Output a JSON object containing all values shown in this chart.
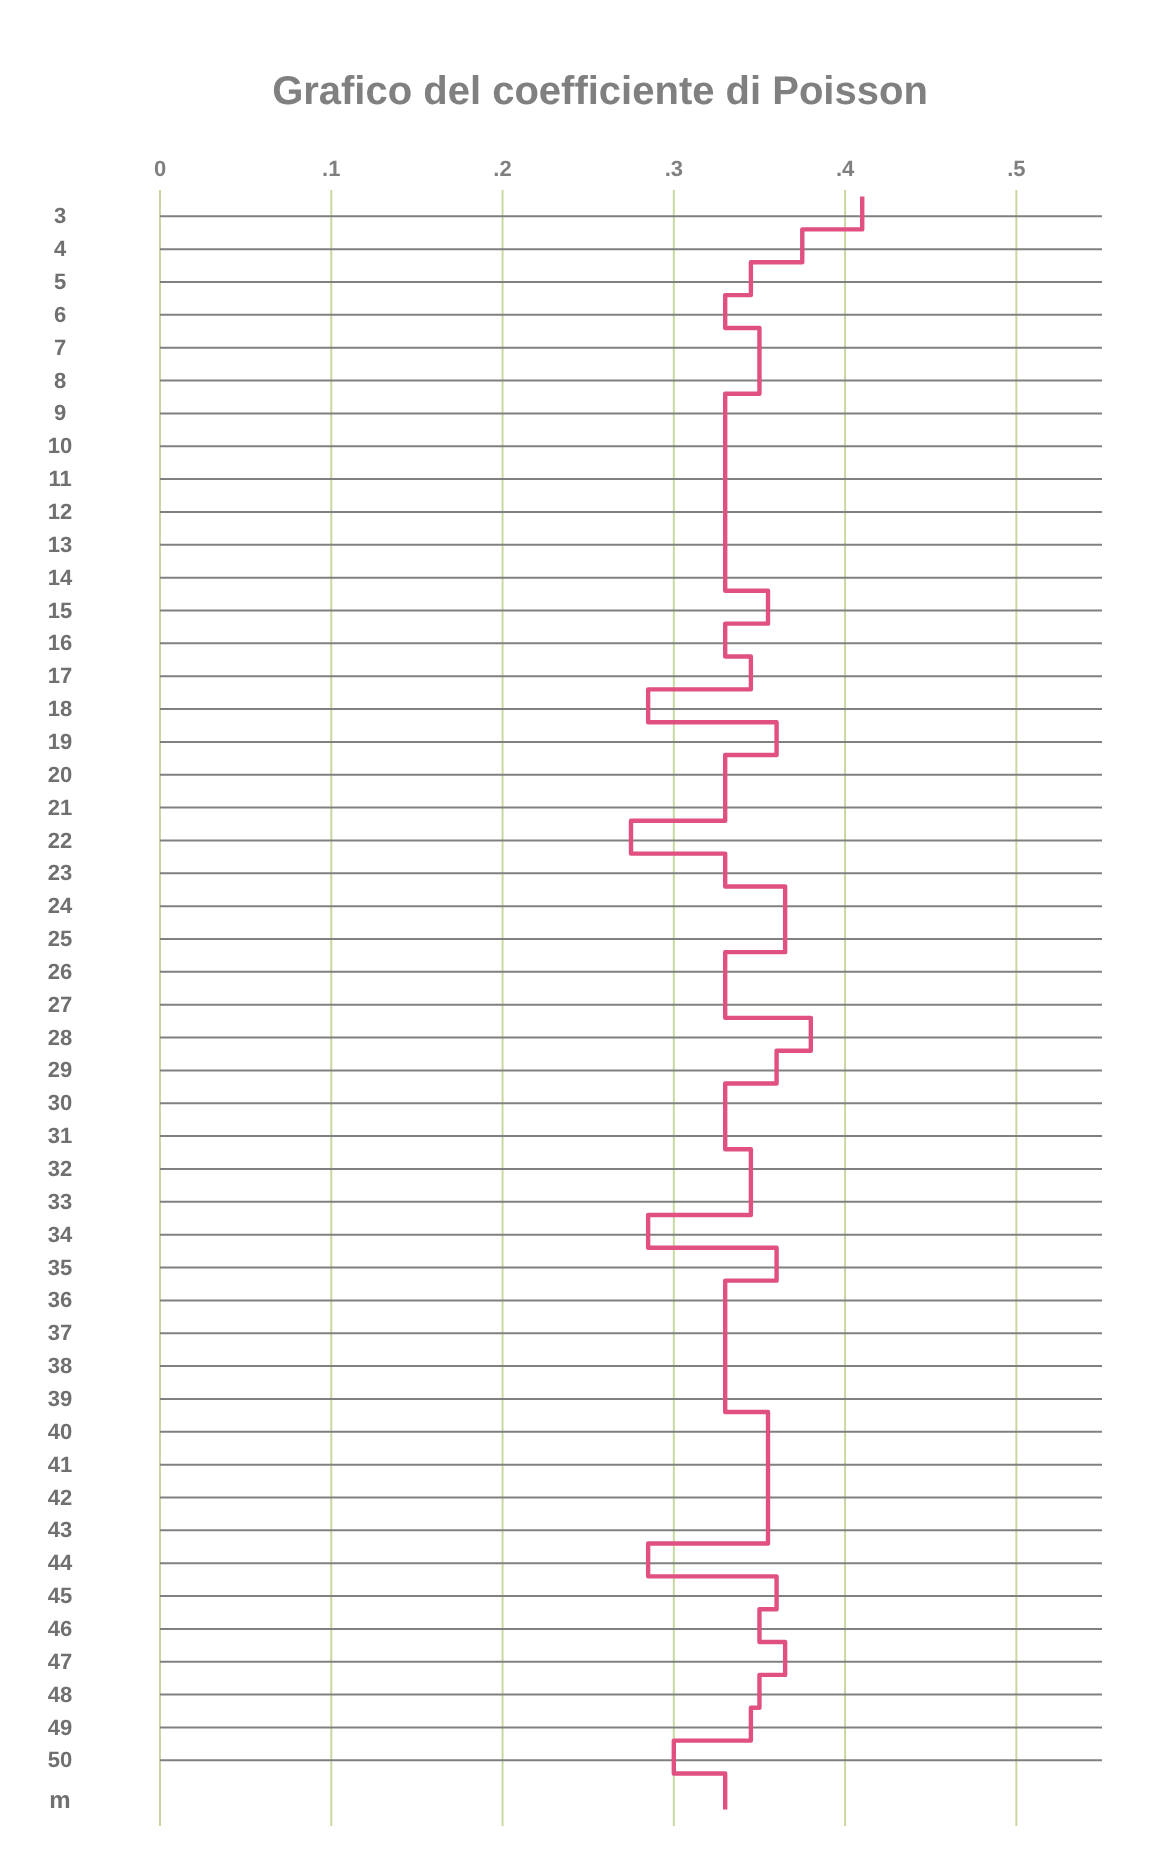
{
  "chart_data": {
    "type": "step",
    "orientation": "horizontal",
    "title": "Grafico del coefficiente di Poisson",
    "ylabel": "m",
    "x": [
      2.4,
      3.4,
      4.4,
      5.4,
      6.4,
      7.4,
      8.4,
      9.4,
      10.4,
      11.4,
      12.4,
      13.4,
      14.4,
      15.4,
      16.4,
      17.4,
      18.4,
      19.4,
      20.4,
      21.4,
      22.4,
      23.4,
      24.4,
      25.4,
      26.4,
      27.4,
      28.4,
      29.4,
      30.4,
      31.4,
      32.4,
      33.4,
      34.4,
      35.4,
      36.4,
      37.4,
      38.4,
      39.4,
      40.4,
      41.4,
      42.4,
      43.4,
      44.4,
      45.4,
      46.4,
      47.4,
      48.4,
      49.4,
      50.4,
      51.5
    ],
    "series": [
      {
        "color": "#e05080",
        "values": [
          0.41,
          0.375,
          0.345,
          0.33,
          0.35,
          0.35,
          0.33,
          0.33,
          0.33,
          0.33,
          0.33,
          0.33,
          0.355,
          0.33,
          0.345,
          0.285,
          0.36,
          0.33,
          0.33,
          0.275,
          0.33,
          0.365,
          0.365,
          0.33,
          0.33,
          0.38,
          0.36,
          0.33,
          0.33,
          0.345,
          0.345,
          0.285,
          0.36,
          0.33,
          0.33,
          0.33,
          0.33,
          0.355,
          0.355,
          0.355,
          0.355,
          0.285,
          0.36,
          0.35,
          0.365,
          0.35,
          0.345,
          0.3,
          0.33,
          0.33
        ]
      }
    ],
    "xlim": [
      0,
      0.55
    ],
    "xticks": [
      0,
      {
        "value": 0.1,
        "label": ".1"
      },
      {
        "value": 0.2,
        "label": ".2"
      },
      {
        "value": 0.3,
        "label": ".3"
      },
      {
        "value": 0.4,
        "label": ".4"
      },
      {
        "value": 0.5,
        "label": ".5"
      }
    ],
    "ylim": [
      52,
      2.2
    ],
    "yticks": [
      3,
      4,
      5,
      6,
      7,
      8,
      9,
      10,
      11,
      12,
      13,
      14,
      15,
      16,
      17,
      18,
      19,
      20,
      21,
      22,
      23,
      24,
      25,
      26,
      27,
      28,
      29,
      30,
      31,
      32,
      33,
      34,
      35,
      36,
      37,
      38,
      39,
      40,
      41,
      42,
      43,
      44,
      45,
      46,
      47,
      48,
      49,
      50
    ],
    "grid": true,
    "line_style": "solid"
  }
}
